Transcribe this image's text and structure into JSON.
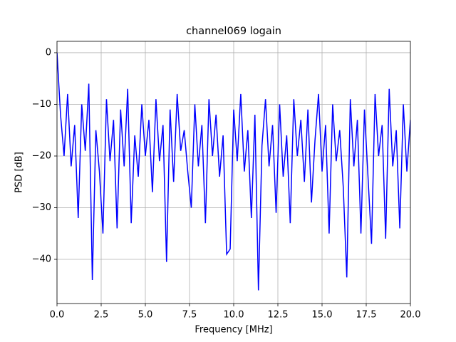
{
  "chart_data": {
    "type": "line",
    "title": "channel069 logain",
    "xlabel": "Frequency [MHz]",
    "ylabel": "PSD [dB]",
    "x": [
      0,
      0.2,
      0.4,
      0.6,
      0.8,
      1.0,
      1.2,
      1.4,
      1.6,
      1.8,
      2.0,
      2.2,
      2.4,
      2.6,
      2.8,
      3.0,
      3.2,
      3.4,
      3.6,
      3.8,
      4.0,
      4.2,
      4.4,
      4.6,
      4.8,
      5.0,
      5.2,
      5.4,
      5.6,
      5.8,
      6.0,
      6.2,
      6.4,
      6.6,
      6.8,
      7.0,
      7.2,
      7.4,
      7.6,
      7.8,
      8.0,
      8.2,
      8.4,
      8.6,
      8.8,
      9.0,
      9.2,
      9.4,
      9.6,
      9.8,
      10.0,
      10.2,
      10.4,
      10.6,
      10.8,
      11.0,
      11.2,
      11.4,
      11.6,
      11.8,
      12.0,
      12.2,
      12.4,
      12.6,
      12.8,
      13.0,
      13.2,
      13.4,
      13.6,
      13.8,
      14.0,
      14.2,
      14.4,
      14.6,
      14.8,
      15.0,
      15.2,
      15.4,
      15.6,
      15.8,
      16.0,
      16.2,
      16.4,
      16.6,
      16.8,
      17.0,
      17.2,
      17.4,
      17.6,
      17.8,
      18.0,
      18.2,
      18.4,
      18.6,
      18.8,
      19.0,
      19.2,
      19.4,
      19.6,
      19.8,
      20.0
    ],
    "series": [
      {
        "color": "#0000ff",
        "values": [
          0,
          -12,
          -20,
          -8,
          -22,
          -14,
          -32,
          -10,
          -19,
          -6,
          -44,
          -15,
          -23,
          -35,
          -9,
          -21,
          -13,
          -34,
          -11,
          -22,
          -7,
          -33,
          -16,
          -24,
          -10,
          -20,
          -13,
          -27,
          -9,
          -21,
          -14,
          -40.5,
          -11,
          -25,
          -8,
          -19,
          -15,
          -23,
          -30,
          -10,
          -22,
          -14,
          -33,
          -9,
          -20,
          -12,
          -24,
          -16,
          -39,
          -38,
          -11,
          -21,
          -8,
          -23,
          -15,
          -32,
          -12,
          -46,
          -18,
          -9,
          -22,
          -14,
          -31,
          -10,
          -24,
          -16,
          -33,
          -9,
          -20,
          -13,
          -25,
          -11,
          -29,
          -17,
          -8,
          -23,
          -14,
          -35,
          -10,
          -21,
          -15,
          -26,
          -43.5,
          -9,
          -22,
          -13,
          -35,
          -11,
          -24,
          -37,
          -8,
          -20,
          -14,
          -36,
          -7,
          -22,
          -15,
          -34,
          -10,
          -23,
          -13
        ]
      }
    ],
    "xlim": [
      0,
      20
    ],
    "ylim": [
      2.2,
      -48.55
    ],
    "xticks": [
      {
        "value": 0,
        "label": "0.0"
      },
      2.5,
      {
        "value": 5,
        "label": "5.0"
      },
      7.5,
      {
        "value": 10,
        "label": "10.0"
      },
      12.5,
      {
        "value": 15,
        "label": "15.0"
      },
      17.5,
      {
        "value": 20,
        "label": "20.0"
      }
    ],
    "yticks": [
      0,
      {
        "value": -10,
        "label": "−10"
      },
      {
        "value": -20,
        "label": "−20"
      },
      {
        "value": -30,
        "label": "−30"
      },
      {
        "value": -40,
        "label": "−40"
      }
    ],
    "grid": true
  }
}
